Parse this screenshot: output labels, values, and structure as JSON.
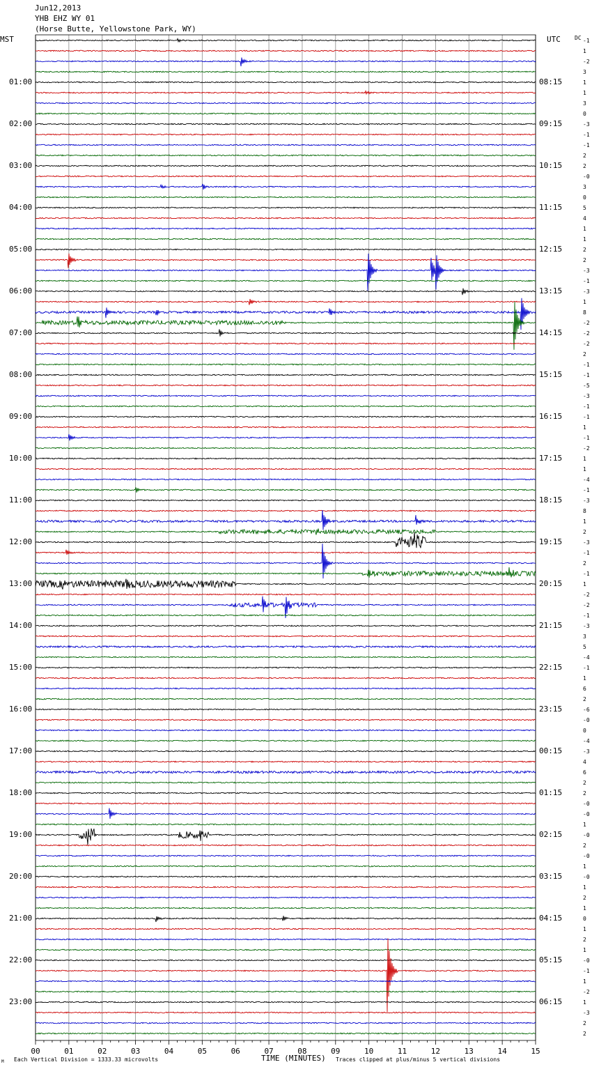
{
  "header": {
    "date": "Jun12,2013",
    "station": "YHB EHZ WY 01",
    "location": "(Horse Butte, Yellowstone Park, WY)",
    "left_tz": "MST",
    "right_tz": "UTC",
    "dc_label": "DC"
  },
  "footer": {
    "scale_note": "Each Vertical Division = 1333.33 microvolts",
    "clip_note": "Traces clipped at plus/minus 5 vertical divisions",
    "corner_mark": "M"
  },
  "chart_data": {
    "type": "line",
    "title": "",
    "xlabel": "TIME (MINUTES)",
    "ylabel": "",
    "xlim": [
      0,
      15
    ],
    "x_ticks": [
      "00",
      "01",
      "02",
      "03",
      "04",
      "05",
      "06",
      "07",
      "08",
      "09",
      "10",
      "11",
      "12",
      "13",
      "14",
      "15"
    ],
    "rows_per_hour": 4,
    "trace_colors": [
      "#000000",
      "#cc0000",
      "#0000cc",
      "#006600"
    ],
    "grid_color": "#888888",
    "mst_labels": [
      "01:00",
      "02:00",
      "03:00",
      "04:00",
      "05:00",
      "06:00",
      "07:00",
      "08:00",
      "09:00",
      "10:00",
      "11:00",
      "12:00",
      "13:00",
      "14:00",
      "15:00",
      "16:00",
      "17:00",
      "18:00",
      "19:00",
      "20:00",
      "21:00",
      "22:00",
      "23:00"
    ],
    "utc_labels": [
      "08:15",
      "09:15",
      "10:15",
      "11:15",
      "12:15",
      "13:15",
      "14:15",
      "15:15",
      "16:15",
      "17:15",
      "18:15",
      "19:15",
      "20:15",
      "21:15",
      "22:15",
      "23:15",
      "00:15",
      "01:15",
      "02:15",
      "03:15",
      "04:15",
      "05:15",
      "06:15"
    ],
    "dc_offsets": [
      "-1",
      "1",
      "-2",
      "3",
      "1",
      "1",
      "3",
      "0",
      "-3",
      "-1",
      "-1",
      "2",
      "2",
      "-0",
      "3",
      "0",
      "5",
      "4",
      "1",
      "1",
      "2",
      "2",
      "-3",
      "-1",
      "-3",
      "1",
      "8",
      "-2",
      "-2",
      "-2",
      "2",
      "-1",
      "-1",
      "-5",
      "-3",
      "-1",
      "-1",
      "1",
      "-1",
      "-2",
      "1",
      "1",
      "-4",
      "-1",
      "-3",
      "8",
      "1",
      "2",
      "-3",
      "-1",
      "2",
      "-1",
      "1",
      "-2",
      "-2",
      "-1",
      "-3",
      "3",
      "5",
      "-4",
      "-1",
      "1",
      "6",
      "2",
      "-6",
      "-0",
      "0",
      "-4",
      "-3",
      "4",
      "6",
      "2",
      "2",
      "-0",
      "-0",
      "1",
      "-0",
      "2",
      "-0",
      "1",
      "-0",
      "1",
      "2",
      "1",
      "0",
      "1",
      "2",
      "1",
      "-0",
      "-1",
      "1",
      "-2",
      "1",
      "-3",
      "2",
      "2"
    ],
    "row_count": 96,
    "events": [
      {
        "row": 0,
        "minute": 4.25,
        "amp": 3
      },
      {
        "row": 2,
        "minute": 6.15,
        "amp": 8
      },
      {
        "row": 5,
        "minute": 9.9,
        "amp": 3
      },
      {
        "row": 14,
        "minute": 5.0,
        "amp": 5
      },
      {
        "row": 14,
        "minute": 3.75,
        "amp": 3
      },
      {
        "row": 21,
        "minute": 0.98,
        "amp": 12
      },
      {
        "row": 22,
        "minute": 9.95,
        "amp": 36
      },
      {
        "row": 22,
        "minute": 11.85,
        "amp": 22
      },
      {
        "row": 22,
        "minute": 12.0,
        "amp": 28
      },
      {
        "row": 24,
        "minute": 12.8,
        "amp": 6
      },
      {
        "row": 25,
        "minute": 6.4,
        "amp": 6
      },
      {
        "row": 26,
        "minute": 2.1,
        "amp": 8
      },
      {
        "row": 26,
        "minute": 3.6,
        "amp": 6
      },
      {
        "row": 26,
        "minute": 8.8,
        "amp": 7
      },
      {
        "row": 26,
        "minute": 14.55,
        "amp": 30
      },
      {
        "row": 27,
        "minute": 1.25,
        "amp": 10
      },
      {
        "row": 27,
        "minute": 14.35,
        "amp": 40
      },
      {
        "row": 28,
        "minute": 5.5,
        "amp": 6
      },
      {
        "row": 38,
        "minute": 1.0,
        "amp": 5
      },
      {
        "row": 43,
        "minute": 3.0,
        "amp": 5
      },
      {
        "row": 46,
        "minute": 8.6,
        "amp": 16
      },
      {
        "row": 46,
        "minute": 11.4,
        "amp": 8
      },
      {
        "row": 47,
        "minute": 8.4,
        "amp": 6
      },
      {
        "row": 48,
        "minute": 11.3,
        "amp": 14
      },
      {
        "row": 49,
        "minute": 0.9,
        "amp": 5
      },
      {
        "row": 50,
        "minute": 8.6,
        "amp": 30
      },
      {
        "row": 51,
        "minute": 9.95,
        "amp": 8
      },
      {
        "row": 51,
        "minute": 14.2,
        "amp": 8
      },
      {
        "row": 52,
        "minute": 0.8,
        "amp": 9
      },
      {
        "row": 52,
        "minute": 2.7,
        "amp": 7
      },
      {
        "row": 54,
        "minute": 6.8,
        "amp": 12
      },
      {
        "row": 54,
        "minute": 7.5,
        "amp": 16
      },
      {
        "row": 74,
        "minute": 2.2,
        "amp": 10
      },
      {
        "row": 76,
        "minute": 1.55,
        "amp": 12
      },
      {
        "row": 76,
        "minute": 4.9,
        "amp": 8
      },
      {
        "row": 84,
        "minute": 3.6,
        "amp": 5
      },
      {
        "row": 84,
        "minute": 7.4,
        "amp": 5
      },
      {
        "row": 89,
        "minute": 10.55,
        "amp": 60
      }
    ],
    "noisy_segments": [
      {
        "row": 27,
        "from": 0.2,
        "to": 7.5,
        "amp": 3
      },
      {
        "row": 26,
        "from": 0,
        "to": 15,
        "amp": 1.5
      },
      {
        "row": 46,
        "from": 0,
        "to": 15,
        "amp": 1.5
      },
      {
        "row": 47,
        "from": 5.5,
        "to": 12,
        "amp": 3
      },
      {
        "row": 48,
        "from": 10.8,
        "to": 11.7,
        "amp": 9
      },
      {
        "row": 51,
        "from": 9.8,
        "to": 15,
        "amp": 3.5
      },
      {
        "row": 52,
        "from": 0,
        "to": 6,
        "amp": 5
      },
      {
        "row": 54,
        "from": 5.8,
        "to": 8.5,
        "amp": 3
      },
      {
        "row": 58,
        "from": 0,
        "to": 15,
        "amp": 1.2
      },
      {
        "row": 70,
        "from": 0,
        "to": 15,
        "amp": 1.6
      },
      {
        "row": 76,
        "from": 1.3,
        "to": 1.8,
        "amp": 8
      },
      {
        "row": 76,
        "from": 4.3,
        "to": 5.2,
        "amp": 5
      }
    ]
  }
}
